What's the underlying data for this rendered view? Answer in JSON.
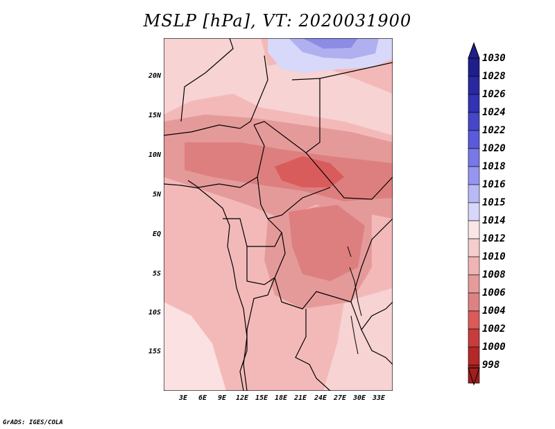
{
  "title": "MSLP [hPa], VT: 2020031900",
  "credit": "GrADS: IGES/COLA",
  "axes": {
    "lat_labels": [
      "20N",
      "15N",
      "10N",
      "5N",
      "EQ",
      "5S",
      "10S",
      "15S"
    ],
    "lon_labels": [
      "3E",
      "6E",
      "9E",
      "12E",
      "15E",
      "18E",
      "21E",
      "24E",
      "27E",
      "30E",
      "33E"
    ]
  },
  "colorbar": {
    "levels": [
      "1030",
      "1028",
      "1026",
      "1024",
      "1022",
      "1020",
      "1018",
      "1016",
      "1015",
      "1014",
      "1012",
      "1010",
      "1008",
      "1006",
      "1004",
      "1002",
      "1000",
      "998"
    ],
    "colors": [
      "#1e1e8c",
      "#2828a0",
      "#3232b4",
      "#4646c8",
      "#5a5adc",
      "#7878e6",
      "#9696f0",
      "#b9b9f5",
      "#d7d7fa",
      "#fae6e6",
      "#f5cdcd",
      "#f0b4b4",
      "#e69b9b",
      "#dc8282",
      "#dc5a5a",
      "#c83c3c",
      "#b42828",
      "#a01e1e"
    ]
  },
  "map": {
    "field": "MSLP",
    "units": "hPa",
    "valid_time": "2020031900",
    "domain": "Central Africa"
  }
}
